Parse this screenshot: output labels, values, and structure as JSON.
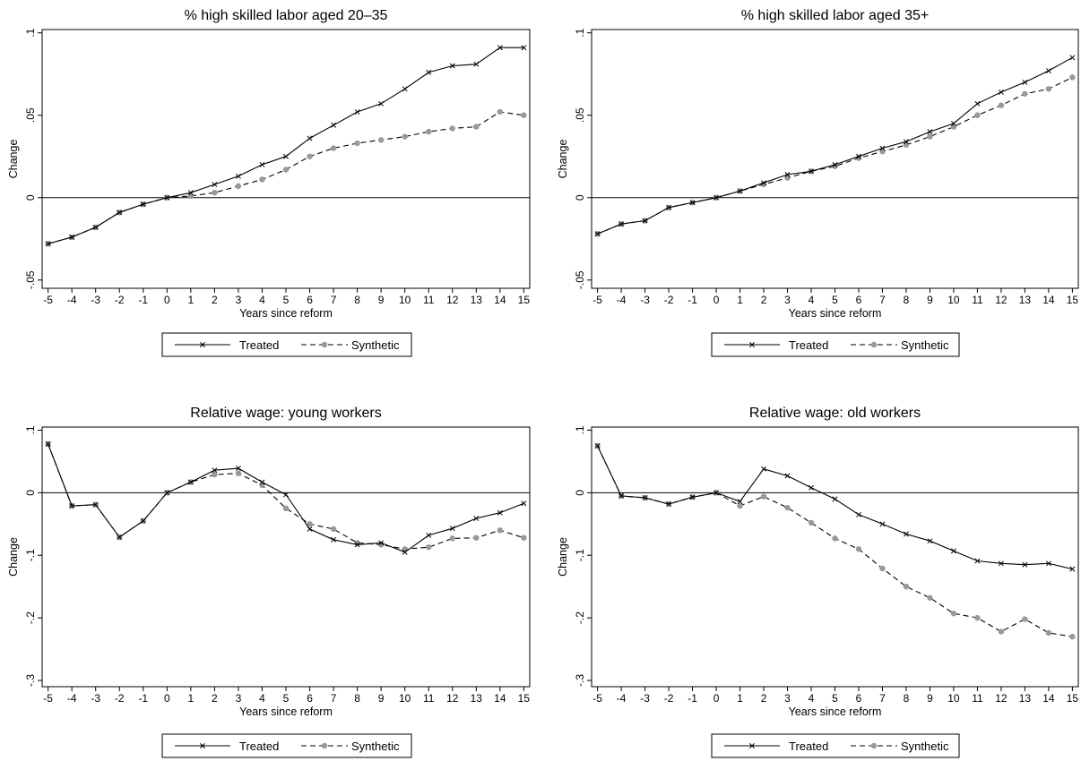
{
  "chart_data": [
    {
      "type": "line",
      "title": "% high skilled labor aged 20–35",
      "xlabel": "Years since reform",
      "ylabel": "Change",
      "x": [
        -5,
        -4,
        -3,
        -2,
        -1,
        0,
        1,
        2,
        3,
        4,
        5,
        6,
        7,
        8,
        9,
        10,
        11,
        12,
        13,
        14,
        15
      ],
      "xticks": [
        "-5",
        "-4",
        "-3",
        "-2",
        "-1",
        "0",
        "1",
        "2",
        "3",
        "4",
        "5",
        "6",
        "7",
        "8",
        "9",
        "10",
        "11",
        "12",
        "13",
        "14",
        "15"
      ],
      "yticks": [
        -0.05,
        0,
        0.05,
        0.1
      ],
      "ytick_labels": [
        "-.05",
        "0",
        ".05",
        ".1"
      ],
      "ylim": [
        -0.055,
        0.102
      ],
      "reference_line_y": 0,
      "legend": "bottom",
      "series": [
        {
          "name": "Treated",
          "style": "solid-x",
          "color": "#000000",
          "values": [
            -0.028,
            -0.024,
            -0.018,
            -0.009,
            -0.004,
            0.0,
            0.003,
            0.008,
            0.013,
            0.02,
            0.025,
            0.036,
            0.044,
            0.052,
            0.057,
            0.066,
            0.076,
            0.08,
            0.081,
            0.091,
            0.091
          ]
        },
        {
          "name": "Synthetic",
          "style": "dashed-dot",
          "color": "#999999",
          "values": [
            -0.028,
            -0.024,
            -0.018,
            -0.009,
            -0.004,
            0.0,
            0.001,
            0.003,
            0.007,
            0.011,
            0.017,
            0.025,
            0.03,
            0.033,
            0.035,
            0.037,
            0.04,
            0.042,
            0.043,
            0.052,
            0.05
          ]
        }
      ]
    },
    {
      "type": "line",
      "title": "% high skilled labor aged 35+",
      "xlabel": "Years since reform",
      "ylabel": "Change",
      "x": [
        -5,
        -4,
        -3,
        -2,
        -1,
        0,
        1,
        2,
        3,
        4,
        5,
        6,
        7,
        8,
        9,
        10,
        11,
        12,
        13,
        14,
        15
      ],
      "xticks": [
        "-5",
        "-4",
        "-3",
        "-2",
        "-1",
        "0",
        "1",
        "2",
        "3",
        "4",
        "5",
        "6",
        "7",
        "8",
        "9",
        "10",
        "11",
        "12",
        "13",
        "14",
        "15"
      ],
      "yticks": [
        -0.05,
        0,
        0.05,
        0.1
      ],
      "ytick_labels": [
        "-.05",
        "0",
        ".05",
        ".1"
      ],
      "ylim": [
        -0.055,
        0.102
      ],
      "reference_line_y": 0,
      "legend": "bottom",
      "series": [
        {
          "name": "Treated",
          "style": "solid-x",
          "color": "#000000",
          "values": [
            -0.022,
            -0.016,
            -0.014,
            -0.006,
            -0.003,
            0.0,
            0.004,
            0.009,
            0.014,
            0.016,
            0.02,
            0.025,
            0.03,
            0.034,
            0.04,
            0.045,
            0.057,
            0.064,
            0.07,
            0.077,
            0.085
          ]
        },
        {
          "name": "Synthetic",
          "style": "dashed-dot",
          "color": "#999999",
          "values": [
            -0.022,
            -0.016,
            -0.014,
            -0.006,
            -0.003,
            0.0,
            0.004,
            0.008,
            0.012,
            0.016,
            0.019,
            0.024,
            0.028,
            0.032,
            0.037,
            0.043,
            0.05,
            0.056,
            0.063,
            0.066,
            0.073
          ]
        }
      ]
    },
    {
      "type": "line",
      "title": "Relative wage: young workers",
      "xlabel": "Years since reform",
      "ylabel": "Change",
      "x": [
        -5,
        -4,
        -3,
        -2,
        -1,
        0,
        1,
        2,
        3,
        4,
        5,
        6,
        7,
        8,
        9,
        10,
        11,
        12,
        13,
        14,
        15
      ],
      "xticks": [
        "-5",
        "-4",
        "-3",
        "-2",
        "-1",
        "0",
        "1",
        "2",
        "3",
        "4",
        "5",
        "6",
        "7",
        "8",
        "9",
        "10",
        "11",
        "12",
        "13",
        "14",
        "15"
      ],
      "yticks": [
        -0.3,
        -0.2,
        -0.1,
        0,
        0.1
      ],
      "ytick_labels": [
        "-.3",
        "-.2",
        "-.1",
        "0",
        ".1"
      ],
      "ylim": [
        -0.31,
        0.105
      ],
      "reference_line_y": 0,
      "legend": "bottom",
      "series": [
        {
          "name": "Treated",
          "style": "solid-x",
          "color": "#000000",
          "values": [
            0.078,
            -0.021,
            -0.019,
            -0.071,
            -0.045,
            0.0,
            0.017,
            0.036,
            0.039,
            0.017,
            -0.003,
            -0.058,
            -0.075,
            -0.083,
            -0.08,
            -0.095,
            -0.068,
            -0.057,
            -0.041,
            -0.032,
            -0.017
          ]
        },
        {
          "name": "Synthetic",
          "style": "dashed-dot",
          "color": "#999999",
          "values": [
            0.078,
            -0.021,
            -0.019,
            -0.071,
            -0.045,
            0.0,
            0.017,
            0.029,
            0.031,
            0.012,
            -0.025,
            -0.05,
            -0.058,
            -0.08,
            -0.083,
            -0.09,
            -0.087,
            -0.073,
            -0.072,
            -0.06,
            -0.072
          ]
        }
      ]
    },
    {
      "type": "line",
      "title": "Relative wage: old workers",
      "xlabel": "Years since reform",
      "ylabel": "Change",
      "x": [
        -5,
        -4,
        -3,
        -2,
        -1,
        0,
        1,
        2,
        3,
        4,
        5,
        6,
        7,
        8,
        9,
        10,
        11,
        12,
        13,
        14,
        15
      ],
      "xticks": [
        "-5",
        "-4",
        "-3",
        "-2",
        "-1",
        "0",
        "1",
        "2",
        "3",
        "4",
        "5",
        "6",
        "7",
        "8",
        "9",
        "10",
        "11",
        "12",
        "13",
        "14",
        "15"
      ],
      "yticks": [
        -0.3,
        -0.2,
        -0.1,
        0,
        0.1
      ],
      "ytick_labels": [
        "-.3",
        "-.2",
        "-.1",
        "0",
        ".1"
      ],
      "ylim": [
        -0.31,
        0.105
      ],
      "reference_line_y": 0,
      "legend": "bottom",
      "series": [
        {
          "name": "Treated",
          "style": "solid-x",
          "color": "#000000",
          "values": [
            0.075,
            -0.005,
            -0.008,
            -0.018,
            -0.007,
            0.0,
            -0.014,
            0.038,
            0.027,
            0.008,
            -0.01,
            -0.035,
            -0.05,
            -0.066,
            -0.077,
            -0.093,
            -0.109,
            -0.113,
            -0.115,
            -0.113,
            -0.122
          ]
        },
        {
          "name": "Synthetic",
          "style": "dashed-dot",
          "color": "#999999",
          "values": [
            0.075,
            -0.005,
            -0.008,
            -0.018,
            -0.007,
            0.0,
            -0.021,
            -0.006,
            -0.024,
            -0.048,
            -0.073,
            -0.09,
            -0.121,
            -0.15,
            -0.168,
            -0.193,
            -0.2,
            -0.222,
            -0.202,
            -0.224,
            -0.23
          ]
        }
      ]
    }
  ]
}
